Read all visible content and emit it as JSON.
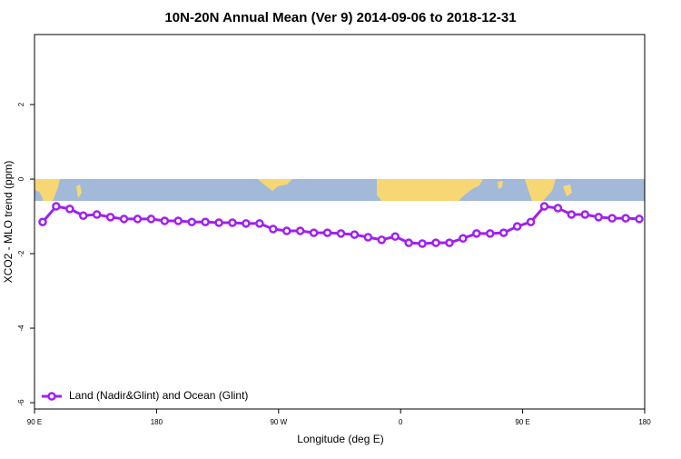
{
  "chart_data": {
    "type": "line",
    "title": "10N-20N Annual Mean (Ver 9)   2014-09-06 to 2018-12-31",
    "x_label": "Longitude (deg E)",
    "y_label": "XCO2 - MLO trend (ppm)",
    "x": [
      96,
      106,
      116,
      126,
      136,
      146,
      156,
      166,
      176,
      186,
      196,
      206,
      216,
      226,
      236,
      246,
      256,
      266,
      276,
      286,
      296,
      306,
      316,
      326,
      336,
      346,
      356,
      366,
      376,
      386,
      396,
      406,
      416,
      426,
      436,
      446,
      456,
      466,
      476,
      486,
      496,
      506,
      516,
      526,
      536
    ],
    "series": [
      {
        "name": "Land (Nadir&Glint) and Ocean (Glint)",
        "color": "#a020f0",
        "values": [
          -1.15,
          -0.73,
          -0.8,
          -0.98,
          -0.95,
          -1.02,
          -1.07,
          -1.07,
          -1.07,
          -1.12,
          -1.12,
          -1.15,
          -1.15,
          -1.17,
          -1.17,
          -1.19,
          -1.19,
          -1.34,
          -1.39,
          -1.39,
          -1.44,
          -1.44,
          -1.46,
          -1.49,
          -1.56,
          -1.63,
          -1.54,
          -1.71,
          -1.73,
          -1.71,
          -1.71,
          -1.59,
          -1.46,
          -1.46,
          -1.44,
          -1.27,
          -1.15,
          -0.73,
          -0.78,
          -0.95,
          -0.95,
          -1.02,
          -1.05,
          -1.05,
          -1.07
        ]
      }
    ],
    "xlim": [
      90,
      540
    ],
    "ylim": [
      -6.17,
      3.88
    ],
    "xticks": [
      {
        "value": 90,
        "label": "90 E"
      },
      180,
      {
        "value": 270,
        "label": "90 W"
      },
      {
        "value": 360,
        "label": "0"
      },
      {
        "value": 450,
        "label": "90 E"
      },
      {
        "value": 540,
        "label": "180"
      }
    ],
    "yticks": [
      -6,
      -4,
      -2,
      0,
      2
    ],
    "legend": "bottom-left"
  }
}
